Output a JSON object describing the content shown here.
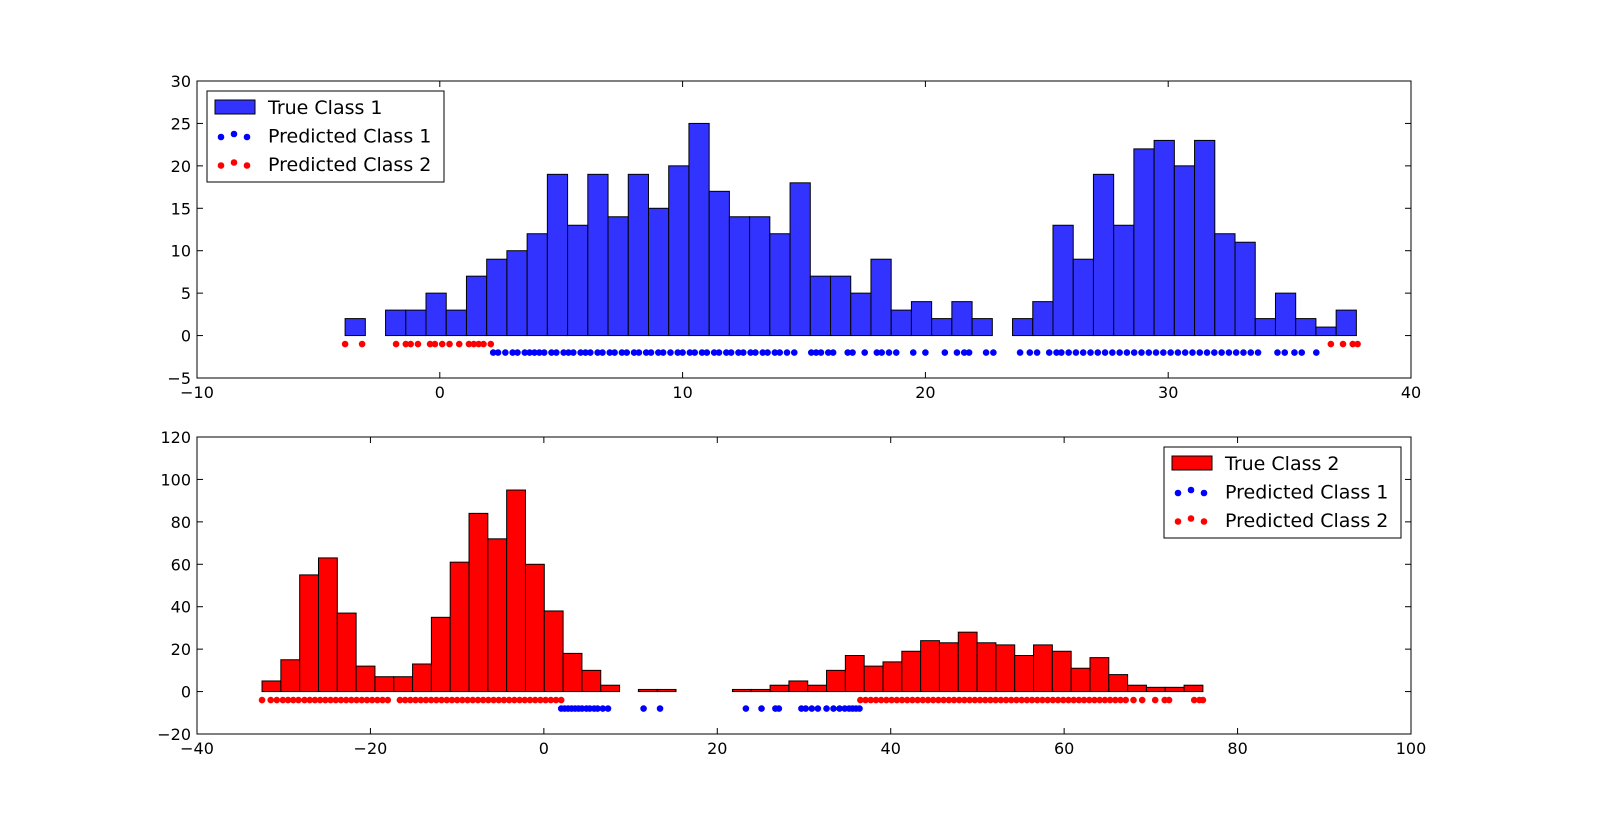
{
  "colors": {
    "class1_bar": "#3333ff",
    "class2_bar": "#ff0000",
    "pred1": "#0000ff",
    "pred2": "#ff0000"
  },
  "chart_data": [
    {
      "type": "bar",
      "title": "",
      "xlabel": "",
      "ylabel": "",
      "xlim": [
        -10,
        40
      ],
      "ylim": [
        -5,
        30
      ],
      "xticks": [
        -10,
        0,
        10,
        20,
        30,
        40
      ],
      "yticks": [
        -5,
        0,
        5,
        10,
        15,
        20,
        25,
        30
      ],
      "xtick_labels": [
        "−10",
        "0",
        "10",
        "20",
        "30",
        "40"
      ],
      "ytick_labels": [
        "−5",
        "0",
        "5",
        "10",
        "15",
        "20",
        "25",
        "30"
      ],
      "legend": {
        "placement": "top-left",
        "entries": [
          "True Class 1",
          "Predicted Class 1",
          "Predicted Class 2"
        ]
      },
      "histogram": {
        "name": "True Class 1",
        "bin_start": -3.9,
        "bin_width": 0.833,
        "counts": [
          2,
          0,
          3,
          3,
          5,
          3,
          7,
          9,
          10,
          12,
          19,
          13,
          19,
          14,
          19,
          15,
          20,
          25,
          17,
          14,
          14,
          12,
          18,
          7,
          7,
          5,
          9,
          3,
          4,
          2,
          4,
          2,
          0,
          2,
          4,
          13,
          9,
          19,
          13,
          22,
          23,
          20,
          23,
          12,
          11,
          2,
          5,
          2,
          1,
          3
        ]
      },
      "predicted": [
        {
          "name": "Predicted Class 1",
          "y": -2,
          "x": [
            2.2,
            2.4,
            2.7,
            3.0,
            3.2,
            3.5,
            3.7,
            3.9,
            4.1,
            4.3,
            4.6,
            4.8,
            5.1,
            5.3,
            5.5,
            5.8,
            6.0,
            6.2,
            6.5,
            6.7,
            7.0,
            7.2,
            7.5,
            7.7,
            8.0,
            8.2,
            8.5,
            8.7,
            9.0,
            9.2,
            9.5,
            9.8,
            10.0,
            10.3,
            10.5,
            10.8,
            11.0,
            11.3,
            11.5,
            11.8,
            12.0,
            12.3,
            12.5,
            12.8,
            13.0,
            13.3,
            13.5,
            13.8,
            14.0,
            14.3,
            14.6,
            15.3,
            15.5,
            15.7,
            16.0,
            16.2,
            16.8,
            17.0,
            17.5,
            18.0,
            18.2,
            18.5,
            18.8,
            19.5,
            20.0,
            20.8,
            21.3,
            21.6,
            21.8,
            22.5,
            22.8,
            23.9,
            24.3,
            24.6,
            25.1,
            25.4,
            25.6,
            25.9,
            26.2,
            26.5,
            26.8,
            27.1,
            27.4,
            27.7,
            28.0,
            28.3,
            28.6,
            28.9,
            29.2,
            29.5,
            29.8,
            30.1,
            30.4,
            30.7,
            31.0,
            31.3,
            31.6,
            31.9,
            32.2,
            32.5,
            32.8,
            33.1,
            33.4,
            33.7,
            34.5,
            34.8,
            35.2,
            35.5,
            36.1
          ]
        },
        {
          "name": "Predicted Class 2",
          "y": -1,
          "x": [
            -3.9,
            -3.2,
            -1.8,
            -1.4,
            -1.2,
            -0.9,
            -0.4,
            -0.2,
            0.1,
            0.4,
            0.8,
            1.2,
            1.4,
            1.6,
            1.8,
            2.1,
            36.7,
            37.2,
            37.6,
            37.8
          ]
        }
      ]
    },
    {
      "type": "bar",
      "title": "",
      "xlabel": "",
      "ylabel": "",
      "xlim": [
        -40,
        100
      ],
      "ylim": [
        -20,
        120
      ],
      "xticks": [
        -40,
        -20,
        0,
        20,
        40,
        60,
        80,
        100
      ],
      "yticks": [
        -20,
        0,
        20,
        40,
        60,
        80,
        100,
        120
      ],
      "xtick_labels": [
        "−40",
        "−20",
        "0",
        "20",
        "40",
        "60",
        "80",
        "100"
      ],
      "ytick_labels": [
        "−20",
        "0",
        "20",
        "40",
        "60",
        "80",
        "100",
        "120"
      ],
      "legend": {
        "placement": "top-right",
        "entries": [
          "True Class 2",
          "Predicted Class 1",
          "Predicted Class 2"
        ]
      },
      "histogram": {
        "name": "True Class 2",
        "bin_start": -32.5,
        "bin_width": 2.17,
        "counts": [
          5,
          15,
          55,
          63,
          37,
          12,
          7,
          7,
          13,
          35,
          61,
          84,
          72,
          95,
          60,
          38,
          18,
          10,
          3,
          0,
          1,
          1,
          0,
          0,
          0,
          1,
          1,
          3,
          5,
          3,
          10,
          17,
          12,
          14,
          19,
          24,
          23,
          28,
          23,
          22,
          17,
          22,
          19,
          11,
          16,
          8,
          3,
          2,
          2,
          3
        ]
      },
      "predicted": [
        {
          "name": "Predicted Class 1",
          "y": -8,
          "x": [
            2.0,
            2.4,
            2.8,
            3.2,
            3.6,
            4.0,
            4.4,
            4.9,
            5.3,
            5.8,
            6.2,
            6.8,
            7.4,
            11.5,
            13.4,
            23.3,
            25.1,
            26.7,
            27.1,
            29.7,
            30.2,
            30.9,
            31.6,
            32.6,
            33.4,
            34.1,
            34.7,
            35.2,
            35.6,
            36.0,
            36.4
          ]
        },
        {
          "name": "Predicted Class 2",
          "y": -4,
          "x": [
            -32.5,
            -31.5,
            -30.8,
            -30.1,
            -29.5,
            -28.9,
            -28.3,
            -27.6,
            -27.0,
            -26.4,
            -25.8,
            -25.2,
            -24.6,
            -24.0,
            -23.4,
            -22.8,
            -22.2,
            -21.6,
            -21.0,
            -20.4,
            -19.8,
            -19.2,
            -18.6,
            -18.0,
            -16.6,
            -16.0,
            -15.4,
            -14.8,
            -14.2,
            -13.6,
            -13.0,
            -12.4,
            -11.8,
            -11.2,
            -10.6,
            -10.0,
            -9.4,
            -8.8,
            -8.2,
            -7.6,
            -7.0,
            -6.4,
            -5.8,
            -5.2,
            -4.6,
            -4.0,
            -3.4,
            -2.8,
            -2.2,
            -1.6,
            -1.0,
            -0.4,
            0.2,
            0.8,
            1.4,
            2.0,
            36.5,
            37.1,
            37.7,
            38.3,
            38.9,
            39.5,
            40.1,
            40.7,
            41.3,
            41.9,
            42.5,
            43.1,
            43.7,
            44.3,
            44.9,
            45.5,
            46.1,
            46.7,
            47.3,
            47.9,
            48.5,
            49.1,
            49.7,
            50.3,
            50.9,
            51.5,
            52.1,
            52.7,
            53.3,
            53.9,
            54.5,
            55.1,
            55.7,
            56.3,
            56.9,
            57.5,
            58.1,
            58.7,
            59.3,
            59.9,
            60.5,
            61.1,
            61.7,
            62.3,
            62.9,
            63.5,
            64.1,
            64.7,
            65.3,
            65.9,
            66.5,
            67.1,
            68.0,
            69.0,
            70.5,
            71.6,
            72.1,
            75.0,
            75.6,
            76.0
          ]
        }
      ]
    }
  ]
}
